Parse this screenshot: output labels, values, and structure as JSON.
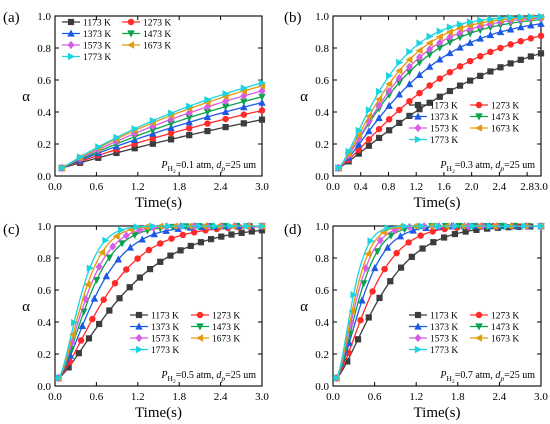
{
  "chart_data": [
    {
      "type": "line",
      "panel_label": "(a)",
      "condition": {
        "p_sym": "P",
        "p_sub": "H",
        "p_sub2": "2",
        "p_rest": "=0.1 atm, ",
        "d_sym": "d",
        "d_sub": "p",
        "d_rest": "=25 um"
      },
      "legend_placement": "top-left",
      "xlabel": "Time(s)",
      "ylabel": "α",
      "xlim": [
        0.0,
        3.0
      ],
      "ylim": [
        0.0,
        1.0
      ],
      "xticks": [
        "0.0",
        "0.6",
        "1.2",
        "1.8",
        "2.4",
        "3.0"
      ],
      "yticks": [
        "0.0",
        "0.2",
        "0.4",
        "0.6",
        "0.8",
        "1.0"
      ],
      "series": [
        {
          "name": "1173 K",
          "color": "#3c3c3c",
          "marker": "square",
          "x0": 0.1,
          "k": 0.132,
          "p": 1.0,
          "points": 12
        },
        {
          "name": "1273 K",
          "color": "#ff2a2a",
          "marker": "circle",
          "x0": 0.1,
          "k": 0.164,
          "p": 1.0,
          "points": 12
        },
        {
          "name": "1373 K",
          "color": "#1c5ae6",
          "marker": "triangle-up",
          "x0": 0.1,
          "k": 0.194,
          "p": 1.0,
          "points": 12
        },
        {
          "name": "1473 K",
          "color": "#08a34c",
          "marker": "triangle-down",
          "x0": 0.1,
          "k": 0.218,
          "p": 1.0,
          "points": 12
        },
        {
          "name": "1573 K",
          "color": "#d85ce4",
          "marker": "diamond",
          "x0": 0.1,
          "k": 0.244,
          "p": 1.0,
          "points": 12
        },
        {
          "name": "1673 K",
          "color": "#e39a0e",
          "marker": "triangle-left",
          "x0": 0.1,
          "k": 0.268,
          "p": 1.0,
          "points": 12
        },
        {
          "name": "1773 K",
          "color": "#1ad4e0",
          "marker": "triangle-right",
          "x0": 0.1,
          "k": 0.283,
          "p": 1.0,
          "points": 12
        }
      ]
    },
    {
      "type": "line",
      "panel_label": "(b)",
      "condition": {
        "p_sym": "P",
        "p_sub": "H",
        "p_sub2": "2",
        "p_rest": "=0.3 atm, ",
        "d_sym": "d",
        "d_sub": "p",
        "d_rest": "=25 um"
      },
      "legend_placement": "bottom-right",
      "xlabel": "Time(s)",
      "ylabel": "α",
      "xlim": [
        0.0,
        3.0
      ],
      "ylim": [
        0.0,
        1.0
      ],
      "xticks": [
        "0.0",
        "0.4",
        "0.8",
        "1.2",
        "1.6",
        "2.0",
        "2.4",
        "2.8",
        "3.0"
      ],
      "yticks": [
        "0.0",
        "0.2",
        "0.4",
        "0.6",
        "0.8",
        "1.0"
      ],
      "series": [
        {
          "name": "1173 K",
          "color": "#3c3c3c",
          "marker": "square",
          "x0": 0.08,
          "k": 0.46,
          "p": 1.15,
          "points": 21
        },
        {
          "name": "1273 K",
          "color": "#ff2a2a",
          "marker": "circle",
          "x0": 0.08,
          "k": 0.62,
          "p": 1.2,
          "points": 21
        },
        {
          "name": "1373 K",
          "color": "#1c5ae6",
          "marker": "triangle-up",
          "x0": 0.08,
          "k": 0.82,
          "p": 1.25,
          "points": 21
        },
        {
          "name": "1473 K",
          "color": "#08a34c",
          "marker": "triangle-down",
          "x0": 0.08,
          "k": 0.98,
          "p": 1.25,
          "points": 21
        },
        {
          "name": "1573 K",
          "color": "#d85ce4",
          "marker": "diamond",
          "x0": 0.08,
          "k": 1.05,
          "p": 1.3,
          "points": 21
        },
        {
          "name": "1673 K",
          "color": "#e39a0e",
          "marker": "triangle-left",
          "x0": 0.08,
          "k": 1.16,
          "p": 1.3,
          "points": 21
        },
        {
          "name": "1773 K",
          "color": "#1ad4e0",
          "marker": "triangle-right",
          "x0": 0.08,
          "k": 1.3,
          "p": 1.3,
          "points": 21
        }
      ]
    },
    {
      "type": "line",
      "panel_label": "(c)",
      "condition": {
        "p_sym": "P",
        "p_sub": "H",
        "p_sub2": "2",
        "p_rest": "=0.5 atm, ",
        "d_sym": "d",
        "d_sub": "p",
        "d_rest": "=25 um"
      },
      "legend_placement": "bottom-right",
      "xlabel": "Time(s)",
      "ylabel": "α",
      "xlim": [
        0.0,
        3.0
      ],
      "ylim": [
        0.0,
        1.0
      ],
      "xticks": [
        "0.0",
        "0.6",
        "1.2",
        "1.8",
        "2.4",
        "3.0"
      ],
      "yticks": [
        "0.0",
        "0.2",
        "0.4",
        "0.6",
        "0.8",
        "1.0"
      ],
      "series": [
        {
          "name": "1173 K",
          "color": "#3c3c3c",
          "marker": "square",
          "x0": 0.05,
          "k": 0.9,
          "p": 1.3,
          "points": 21
        },
        {
          "name": "1273 K",
          "color": "#ff2a2a",
          "marker": "circle",
          "x0": 0.05,
          "k": 1.2,
          "p": 1.35,
          "points": 19
        },
        {
          "name": "1373 K",
          "color": "#1c5ae6",
          "marker": "triangle-up",
          "x0": 0.05,
          "k": 1.55,
          "p": 1.4,
          "points": 18
        },
        {
          "name": "1473 K",
          "color": "#08a34c",
          "marker": "triangle-down",
          "x0": 0.05,
          "k": 1.85,
          "p": 1.45,
          "points": 17
        },
        {
          "name": "1573 K",
          "color": "#d85ce4",
          "marker": "diamond",
          "x0": 0.05,
          "k": 2.05,
          "p": 1.45,
          "points": 16
        },
        {
          "name": "1673 K",
          "color": "#e39a0e",
          "marker": "triangle-left",
          "x0": 0.05,
          "k": 2.3,
          "p": 1.5,
          "points": 15
        },
        {
          "name": "1773 K",
          "color": "#1ad4e0",
          "marker": "triangle-right",
          "x0": 0.05,
          "k": 2.6,
          "p": 1.5,
          "points": 14
        }
      ]
    },
    {
      "type": "line",
      "panel_label": "(d)",
      "condition": {
        "p_sym": "P",
        "p_sub": "H",
        "p_sub2": "2",
        "p_rest": "=0.7 atm, ",
        "d_sym": "d",
        "d_sub": "p",
        "d_rest": "=25 um"
      },
      "legend_placement": "bottom-right",
      "xlabel": "Time(s)",
      "ylabel": "α",
      "xlim": [
        0.0,
        3.0
      ],
      "ylim": [
        0.0,
        1.0
      ],
      "xticks": [
        "0.0",
        "0.6",
        "1.2",
        "1.8",
        "2.4",
        "3.0"
      ],
      "yticks": [
        "0.0",
        "0.2",
        "0.4",
        "0.6",
        "0.8",
        "1.0"
      ],
      "series": [
        {
          "name": "1173 K",
          "color": "#3c3c3c",
          "marker": "square",
          "x0": 0.05,
          "k": 1.3,
          "p": 1.35,
          "points": 20
        },
        {
          "name": "1273 K",
          "color": "#ff2a2a",
          "marker": "circle",
          "x0": 0.05,
          "k": 1.7,
          "p": 1.4,
          "points": 18
        },
        {
          "name": "1373 K",
          "color": "#1c5ae6",
          "marker": "triangle-up",
          "x0": 0.05,
          "k": 2.15,
          "p": 1.45,
          "points": 17
        },
        {
          "name": "1473 K",
          "color": "#08a34c",
          "marker": "triangle-down",
          "x0": 0.05,
          "k": 2.5,
          "p": 1.5,
          "points": 16
        },
        {
          "name": "1573 K",
          "color": "#d85ce4",
          "marker": "diamond",
          "x0": 0.05,
          "k": 2.8,
          "p": 1.5,
          "points": 15
        },
        {
          "name": "1673 K",
          "color": "#e39a0e",
          "marker": "triangle-left",
          "x0": 0.05,
          "k": 3.1,
          "p": 1.55,
          "points": 14
        },
        {
          "name": "1773 K",
          "color": "#1ad4e0",
          "marker": "triangle-right",
          "x0": 0.05,
          "k": 3.5,
          "p": 1.55,
          "points": 13
        }
      ]
    }
  ]
}
